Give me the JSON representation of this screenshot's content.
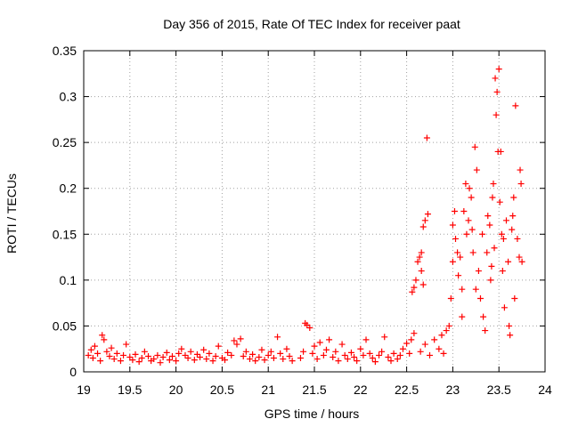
{
  "chart_data": {
    "type": "scatter",
    "title": "Day 356 of 2015, Rate Of TEC Index for receiver paat",
    "xlabel": "GPS time / hours",
    "ylabel": "ROTI / TECUs",
    "xlim": [
      19,
      24
    ],
    "ylim": [
      0,
      0.35
    ],
    "xticks": [
      19,
      19.5,
      20,
      20.5,
      21,
      21.5,
      22,
      22.5,
      23,
      23.5,
      24
    ],
    "xtick_labels": [
      "19",
      "19.5",
      "20",
      "20.5",
      "21",
      "21.5",
      "22",
      "22.5",
      "23",
      "23.5",
      "24"
    ],
    "yticks": [
      0,
      0.05,
      0.1,
      0.15,
      0.2,
      0.25,
      0.3,
      0.35
    ],
    "ytick_labels": [
      "0",
      "0.05",
      "0.1",
      "0.15",
      "0.2",
      "0.25",
      "0.3",
      "0.35"
    ],
    "grid": true,
    "marker": "+",
    "series": [
      {
        "name": "ROTI",
        "color": "#ff0000",
        "points": [
          [
            19.05,
            0.018
          ],
          [
            19.08,
            0.024
          ],
          [
            19.1,
            0.015
          ],
          [
            19.12,
            0.028
          ],
          [
            19.15,
            0.02
          ],
          [
            19.18,
            0.012
          ],
          [
            19.2,
            0.04
          ],
          [
            19.22,
            0.035
          ],
          [
            19.25,
            0.022
          ],
          [
            19.28,
            0.017
          ],
          [
            19.3,
            0.026
          ],
          [
            19.33,
            0.014
          ],
          [
            19.36,
            0.02
          ],
          [
            19.4,
            0.012
          ],
          [
            19.43,
            0.018
          ],
          [
            19.46,
            0.03
          ],
          [
            19.5,
            0.016
          ],
          [
            19.53,
            0.013
          ],
          [
            19.56,
            0.019
          ],
          [
            19.6,
            0.011
          ],
          [
            19.63,
            0.015
          ],
          [
            19.66,
            0.022
          ],
          [
            19.7,
            0.017
          ],
          [
            19.73,
            0.012
          ],
          [
            19.76,
            0.014
          ],
          [
            19.8,
            0.018
          ],
          [
            19.83,
            0.01
          ],
          [
            19.86,
            0.016
          ],
          [
            19.9,
            0.021
          ],
          [
            19.93,
            0.013
          ],
          [
            19.96,
            0.017
          ],
          [
            20.0,
            0.012
          ],
          [
            20.03,
            0.02
          ],
          [
            20.06,
            0.025
          ],
          [
            20.1,
            0.018
          ],
          [
            20.13,
            0.015
          ],
          [
            20.16,
            0.022
          ],
          [
            20.2,
            0.013
          ],
          [
            20.23,
            0.019
          ],
          [
            20.26,
            0.016
          ],
          [
            20.3,
            0.024
          ],
          [
            20.33,
            0.014
          ],
          [
            20.36,
            0.02
          ],
          [
            20.4,
            0.012
          ],
          [
            20.43,
            0.017
          ],
          [
            20.46,
            0.028
          ],
          [
            20.5,
            0.015
          ],
          [
            20.53,
            0.013
          ],
          [
            20.56,
            0.021
          ],
          [
            20.6,
            0.018
          ],
          [
            20.63,
            0.034
          ],
          [
            20.66,
            0.03
          ],
          [
            20.7,
            0.036
          ],
          [
            20.73,
            0.017
          ],
          [
            20.76,
            0.022
          ],
          [
            20.8,
            0.014
          ],
          [
            20.83,
            0.019
          ],
          [
            20.86,
            0.012
          ],
          [
            20.9,
            0.016
          ],
          [
            20.93,
            0.024
          ],
          [
            20.96,
            0.013
          ],
          [
            21.0,
            0.018
          ],
          [
            21.03,
            0.022
          ],
          [
            21.06,
            0.015
          ],
          [
            21.1,
            0.038
          ],
          [
            21.13,
            0.02
          ],
          [
            21.16,
            0.014
          ],
          [
            21.2,
            0.025
          ],
          [
            21.23,
            0.017
          ],
          [
            21.26,
            0.012
          ],
          [
            21.35,
            0.015
          ],
          [
            21.38,
            0.022
          ],
          [
            21.4,
            0.053
          ],
          [
            21.42,
            0.051
          ],
          [
            21.45,
            0.048
          ],
          [
            21.48,
            0.02
          ],
          [
            21.5,
            0.028
          ],
          [
            21.53,
            0.014
          ],
          [
            21.56,
            0.032
          ],
          [
            21.6,
            0.018
          ],
          [
            21.63,
            0.024
          ],
          [
            21.66,
            0.035
          ],
          [
            21.7,
            0.016
          ],
          [
            21.73,
            0.022
          ],
          [
            21.76,
            0.012
          ],
          [
            21.8,
            0.03
          ],
          [
            21.83,
            0.018
          ],
          [
            21.86,
            0.014
          ],
          [
            21.9,
            0.021
          ],
          [
            21.93,
            0.016
          ],
          [
            21.96,
            0.012
          ],
          [
            22.0,
            0.025
          ],
          [
            22.03,
            0.018
          ],
          [
            22.06,
            0.035
          ],
          [
            22.1,
            0.02
          ],
          [
            22.13,
            0.015
          ],
          [
            22.16,
            0.011
          ],
          [
            22.2,
            0.018
          ],
          [
            22.23,
            0.022
          ],
          [
            22.26,
            0.038
          ],
          [
            22.3,
            0.016
          ],
          [
            22.33,
            0.012
          ],
          [
            22.36,
            0.02
          ],
          [
            22.4,
            0.014
          ],
          [
            22.43,
            0.018
          ],
          [
            22.46,
            0.025
          ],
          [
            22.5,
            0.031
          ],
          [
            22.53,
            0.02
          ],
          [
            22.55,
            0.035
          ],
          [
            22.58,
            0.042
          ],
          [
            22.56,
            0.087
          ],
          [
            22.58,
            0.092
          ],
          [
            22.6,
            0.1
          ],
          [
            22.62,
            0.12
          ],
          [
            22.64,
            0.125
          ],
          [
            22.66,
            0.13
          ],
          [
            22.68,
            0.158
          ],
          [
            22.7,
            0.165
          ],
          [
            22.72,
            0.255
          ],
          [
            22.73,
            0.172
          ],
          [
            22.66,
            0.11
          ],
          [
            22.68,
            0.095
          ],
          [
            22.65,
            0.022
          ],
          [
            22.7,
            0.03
          ],
          [
            22.75,
            0.018
          ],
          [
            22.8,
            0.035
          ],
          [
            22.85,
            0.025
          ],
          [
            22.88,
            0.04
          ],
          [
            22.9,
            0.02
          ],
          [
            22.93,
            0.045
          ],
          [
            22.96,
            0.05
          ],
          [
            22.98,
            0.08
          ],
          [
            23.0,
            0.12
          ],
          [
            23.0,
            0.16
          ],
          [
            23.02,
            0.175
          ],
          [
            23.03,
            0.145
          ],
          [
            23.05,
            0.13
          ],
          [
            23.06,
            0.105
          ],
          [
            23.08,
            0.125
          ],
          [
            23.1,
            0.09
          ],
          [
            23.1,
            0.06
          ],
          [
            23.12,
            0.175
          ],
          [
            23.14,
            0.205
          ],
          [
            23.15,
            0.15
          ],
          [
            23.17,
            0.165
          ],
          [
            23.18,
            0.2
          ],
          [
            23.2,
            0.19
          ],
          [
            23.21,
            0.155
          ],
          [
            23.22,
            0.13
          ],
          [
            23.24,
            0.245
          ],
          [
            23.25,
            0.09
          ],
          [
            23.26,
            0.22
          ],
          [
            23.28,
            0.11
          ],
          [
            23.3,
            0.08
          ],
          [
            23.32,
            0.15
          ],
          [
            23.33,
            0.06
          ],
          [
            23.35,
            0.045
          ],
          [
            23.37,
            0.13
          ],
          [
            23.38,
            0.17
          ],
          [
            23.4,
            0.16
          ],
          [
            23.41,
            0.1
          ],
          [
            23.42,
            0.115
          ],
          [
            23.43,
            0.19
          ],
          [
            23.44,
            0.205
          ],
          [
            23.45,
            0.135
          ],
          [
            23.46,
            0.32
          ],
          [
            23.47,
            0.28
          ],
          [
            23.48,
            0.305
          ],
          [
            23.49,
            0.24
          ],
          [
            23.5,
            0.33
          ],
          [
            23.51,
            0.185
          ],
          [
            23.52,
            0.24
          ],
          [
            23.53,
            0.15
          ],
          [
            23.54,
            0.11
          ],
          [
            23.55,
            0.145
          ],
          [
            23.56,
            0.07
          ],
          [
            23.58,
            0.165
          ],
          [
            23.6,
            0.12
          ],
          [
            23.61,
            0.05
          ],
          [
            23.62,
            0.04
          ],
          [
            23.64,
            0.155
          ],
          [
            23.65,
            0.17
          ],
          [
            23.66,
            0.19
          ],
          [
            23.67,
            0.08
          ],
          [
            23.68,
            0.29
          ],
          [
            23.7,
            0.145
          ],
          [
            23.72,
            0.125
          ],
          [
            23.73,
            0.22
          ],
          [
            23.74,
            0.205
          ],
          [
            23.75,
            0.12
          ]
        ]
      }
    ]
  }
}
